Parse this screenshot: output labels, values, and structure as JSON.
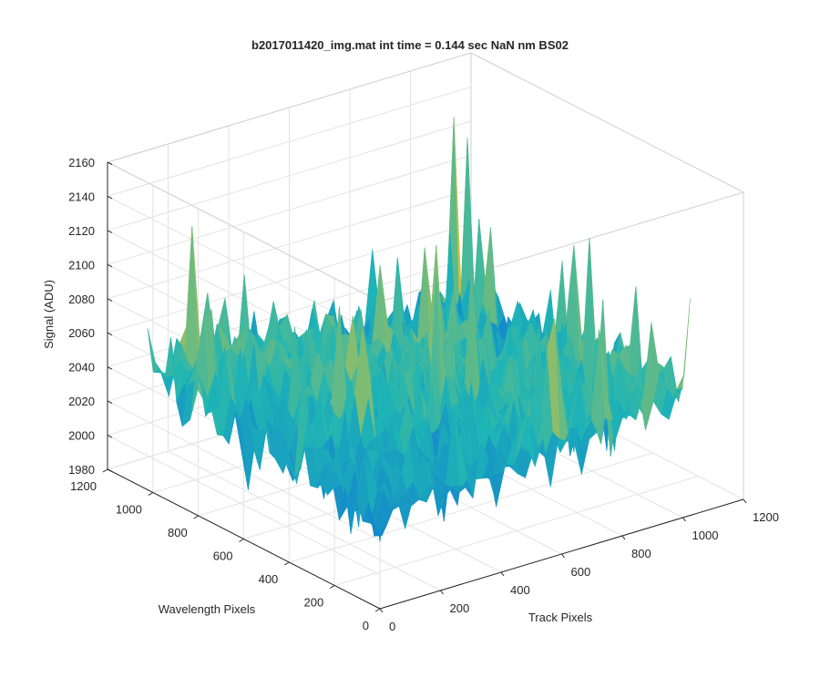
{
  "chart_data": {
    "type": "surface",
    "title": "b2017011420_img.mat int time = 0.144 sec  NaN nm BS02",
    "xlabel": "Track Pixels",
    "ylabel": "Wavelength Pixels",
    "zlabel": "Signal (ADU)",
    "xlim": [
      0,
      1200
    ],
    "ylim": [
      0,
      1200
    ],
    "zlim": [
      1980,
      2160
    ],
    "x_ticks": [
      0,
      200,
      400,
      600,
      800,
      1000,
      1200
    ],
    "x_tick_labels": [
      "0",
      "200",
      "400",
      "600",
      "800",
      "1000",
      "1200"
    ],
    "y_ticks": [
      0,
      200,
      400,
      600,
      800,
      1000,
      1200
    ],
    "y_tick_labels": [
      "0",
      "200",
      "400",
      "600",
      "800",
      "1000",
      "1200"
    ],
    "z_ticks": [
      1980,
      2000,
      2020,
      2040,
      2060,
      2080,
      2100,
      2120,
      2140,
      2160
    ],
    "z_tick_labels": [
      "1980",
      "2000",
      "2020",
      "2040",
      "2060",
      "2080",
      "2100",
      "2120",
      "2140",
      "2160"
    ],
    "surface_extent": {
      "x": [
        0,
        1024
      ],
      "y": [
        0,
        1024
      ]
    },
    "signal_baseline": 2035,
    "signal_peak": 2150,
    "signal_min": 1995,
    "grid": true,
    "box": "full",
    "colormap": "parula",
    "colors": {
      "low": "#0d6fd8",
      "mid": "#1fb5b5",
      "high": "#d2c23b",
      "axis": "#262626",
      "grid": "#e3e3e3"
    }
  }
}
